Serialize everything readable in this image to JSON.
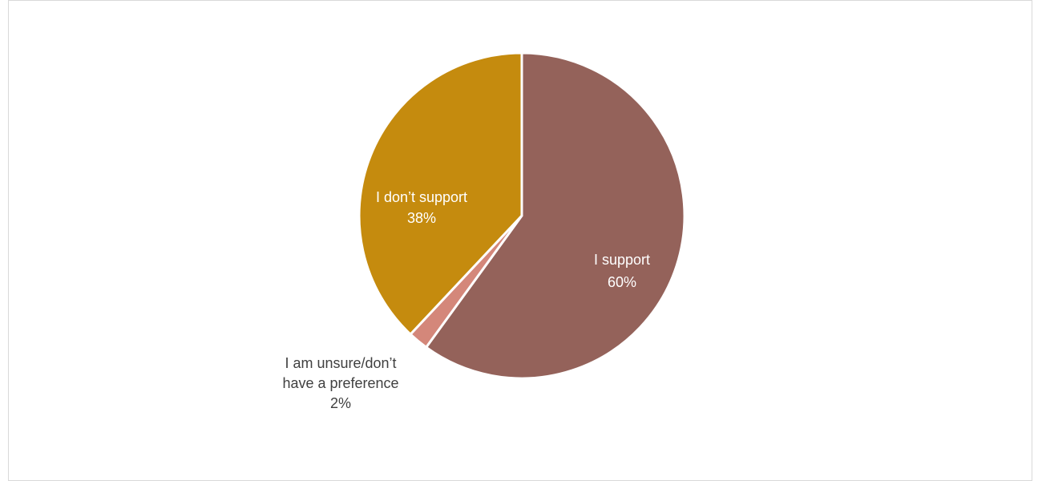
{
  "chart_data": {
    "type": "pie",
    "title": "",
    "start_angle_deg": 0,
    "direction": "clockwise",
    "slices": [
      {
        "label": "I support",
        "value": 60,
        "value_label": "60%",
        "color": "#94625a",
        "text_color": "#ffffff"
      },
      {
        "label": "I am unsure/don’t have a preference",
        "label_lines": [
          "I am unsure/don’t",
          "have a preference"
        ],
        "value": 2,
        "value_label": "2%",
        "color": "#d4877a",
        "text_color": "#404040"
      },
      {
        "label": "I don’t support",
        "value": 38,
        "value_label": "38%",
        "color": "#c58b0e",
        "text_color": "#ffffff"
      }
    ],
    "legend": "none"
  },
  "colors": {
    "border": "#d9d9d9",
    "separator": "#ffffff"
  }
}
